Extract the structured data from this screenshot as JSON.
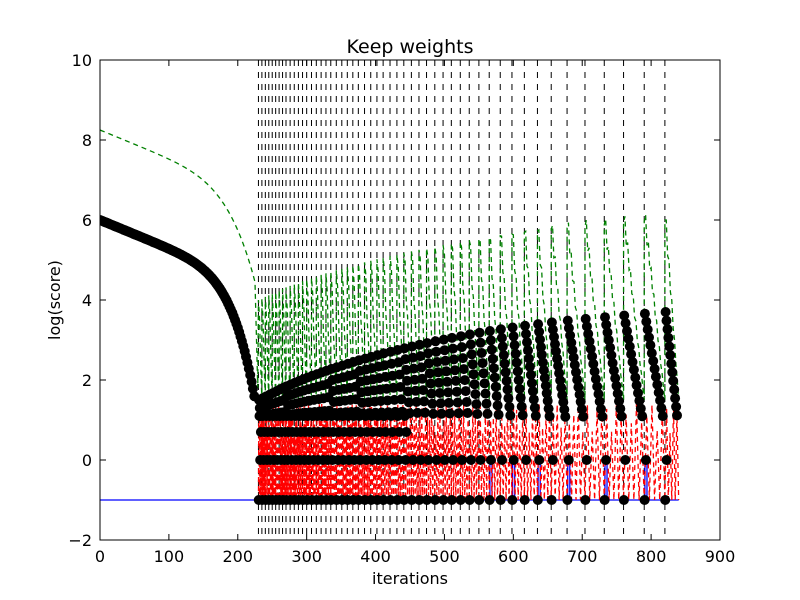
{
  "chart_data": {
    "type": "line",
    "title": "Keep weights",
    "xlabel": "iterations",
    "ylabel": "log(score)",
    "xlim": [
      0,
      900
    ],
    "ylim": [
      -2,
      10
    ],
    "x_ticks": [
      "0",
      "100",
      "200",
      "300",
      "400",
      "500",
      "600",
      "700",
      "800",
      "900"
    ],
    "y_ticks": [
      "−2",
      "0",
      "2",
      "4",
      "6",
      "8",
      "10"
    ],
    "grid": false,
    "restart_iterations": [
      230,
      235,
      240,
      245,
      250,
      255,
      260,
      265,
      270,
      276,
      282,
      288,
      294,
      300,
      307,
      314,
      321,
      328,
      335,
      343,
      351,
      359,
      367,
      375,
      384,
      393,
      402,
      411,
      421,
      431,
      441,
      452,
      463,
      474,
      486,
      498,
      510,
      523,
      536,
      550,
      565,
      581,
      598,
      616,
      635,
      655,
      678,
      704,
      732,
      760,
      790,
      820
    ],
    "end_iteration": 840,
    "series": [
      {
        "style": "black markers",
        "color": "#000000",
        "shape": "monotone decay from 6.0 at iteration 0 to 1.5 near iteration 225, then repeated decays after each restart line; peaks grow from about 1.5 to about 3.7, each cycle falling to -1; discrete lower levels at 0, 0.7 and 1.1"
      },
      {
        "style": "dashed",
        "color": "#008000",
        "shape": "smooth decay from 8.25 at iteration 0 to about 4.6 near iteration 220, then sawtooth spikes after each restart; peaks rise from about 4.0 to about 6.0"
      },
      {
        "style": "dashed",
        "color": "#ff0000",
        "shape": "oscillates between -1 and about 1.5 after each restart, from iteration 230 to 820"
      },
      {
        "style": "solid",
        "color": "#0000ff",
        "shape": "constant -1 from 0 to 840, with brief jumps up to 0 at several restarts after iteration 560"
      }
    ]
  }
}
